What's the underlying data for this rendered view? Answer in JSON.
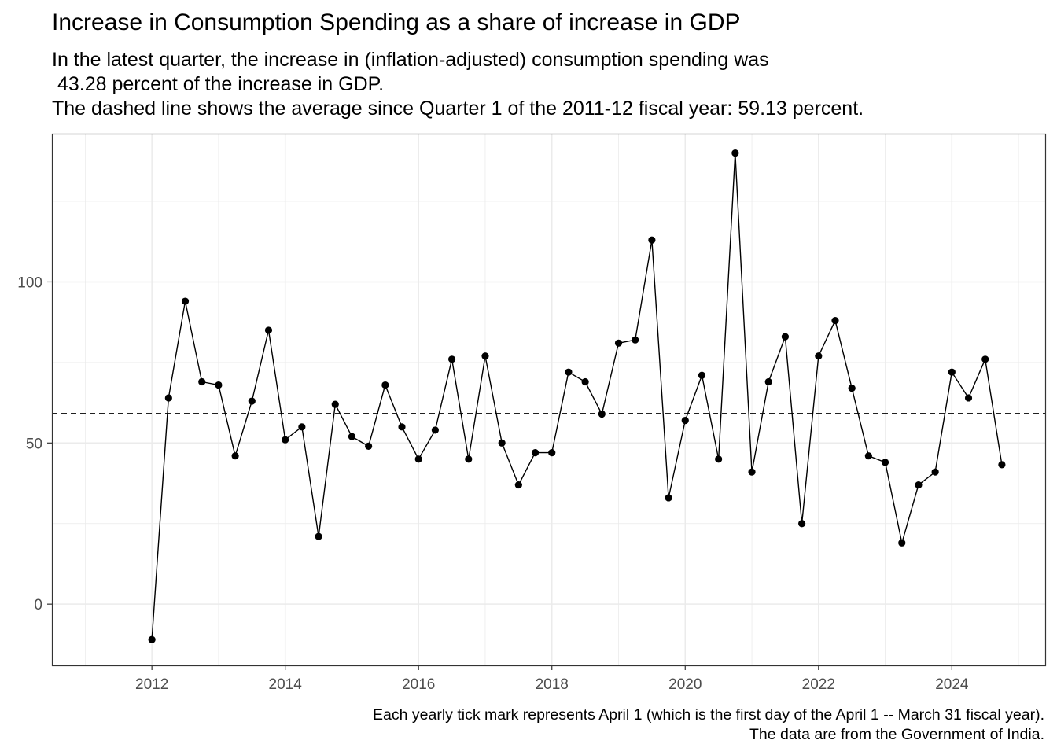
{
  "chart_data": {
    "type": "line",
    "title": "Increase in Consumption Spending as a share of increase in GDP",
    "subtitle_lines": [
      "In the latest quarter, the increase in (inflation-adjusted) consumption spending was",
      " 43.28 percent of the increase in GDP.",
      "The dashed line shows the average since Quarter 1 of the 2011-12 fiscal year: 59.13 percent."
    ],
    "caption_lines": [
      "Each yearly tick mark represents April 1 (which is the first day of the April 1 -- March 31 fiscal year).",
      "The data are from the Government of India."
    ],
    "xlabel": "",
    "ylabel": "",
    "xlim": [
      2010.5,
      2025.4
    ],
    "ylim": [
      -19,
      146
    ],
    "x_ticks": [
      2012,
      2014,
      2016,
      2018,
      2020,
      2022,
      2024
    ],
    "x_tick_labels": [
      "2012",
      "2014",
      "2016",
      "2018",
      "2020",
      "2022",
      "2024"
    ],
    "y_ticks": [
      0,
      50,
      100
    ],
    "y_tick_labels": [
      "0",
      "50",
      "100"
    ],
    "average_line": 59.13,
    "x": [
      2012.0,
      2012.25,
      2012.5,
      2012.75,
      2013.0,
      2013.25,
      2013.5,
      2013.75,
      2014.0,
      2014.25,
      2014.5,
      2014.75,
      2015.0,
      2015.25,
      2015.5,
      2015.75,
      2016.0,
      2016.25,
      2016.5,
      2016.75,
      2017.0,
      2017.25,
      2017.5,
      2017.75,
      2018.0,
      2018.25,
      2018.5,
      2018.75,
      2019.0,
      2019.25,
      2019.5,
      2019.75,
      2020.0,
      2020.25,
      2020.5,
      2020.75,
      2021.0,
      2021.25,
      2021.5,
      2021.75,
      2022.0,
      2022.25,
      2022.5,
      2022.75,
      2023.0,
      2023.25,
      2023.5,
      2023.75,
      2024.0,
      2024.25,
      2024.5,
      2024.75
    ],
    "values": [
      -11,
      64,
      94,
      69,
      68,
      46,
      63,
      85,
      51,
      55,
      21,
      62,
      52,
      49,
      68,
      55,
      45,
      54,
      76,
      45,
      77,
      50,
      37,
      47,
      47,
      72,
      69,
      59,
      81,
      82,
      113,
      33,
      57,
      71,
      45,
      140,
      41,
      69,
      83,
      25,
      77,
      88,
      67,
      46,
      44,
      19,
      37,
      41,
      72,
      64,
      76,
      43.28
    ],
    "colors": {
      "line": "#000000",
      "points": "#000000",
      "grid": "#ebebeb",
      "panel_border": "#333333",
      "tick_text": "#4d4d4d"
    }
  }
}
